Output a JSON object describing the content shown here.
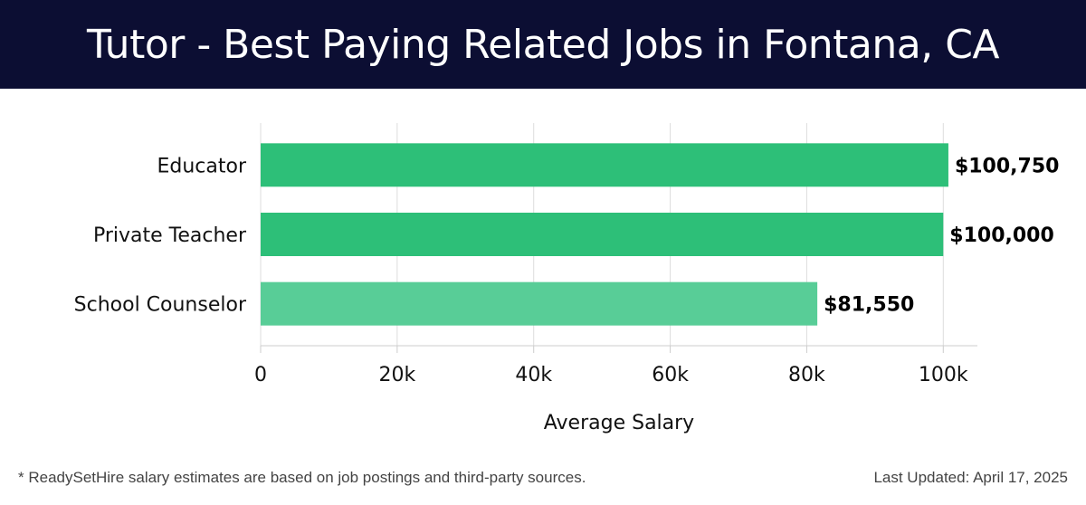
{
  "header": {
    "title": "Tutor - Best Paying Related Jobs in Fontana, CA"
  },
  "footer": {
    "note": "* ReadySetHire salary estimates are based on job postings and third-party sources.",
    "updated": "Last Updated: April 17, 2025"
  },
  "colors": {
    "header_bg": "#0c0e33",
    "bar_primary": "#2dbf78",
    "bar_light": "#58cd97"
  },
  "chart_data": {
    "type": "bar",
    "orientation": "horizontal",
    "categories": [
      "Educator",
      "Private Teacher",
      "School Counselor"
    ],
    "values": [
      100750,
      100000,
      81550
    ],
    "value_labels": [
      "$100,750",
      "$100,000",
      "$81,550"
    ],
    "bar_colors": [
      "#2dbf78",
      "#2dbf78",
      "#58cd97"
    ],
    "xlabel": "Average Salary",
    "xlim": [
      0,
      105000
    ],
    "xticks": [
      0,
      20000,
      40000,
      60000,
      80000,
      100000
    ],
    "xtick_labels": [
      "0",
      "20k",
      "40k",
      "60k",
      "80k",
      "100k"
    ],
    "grid": true
  }
}
